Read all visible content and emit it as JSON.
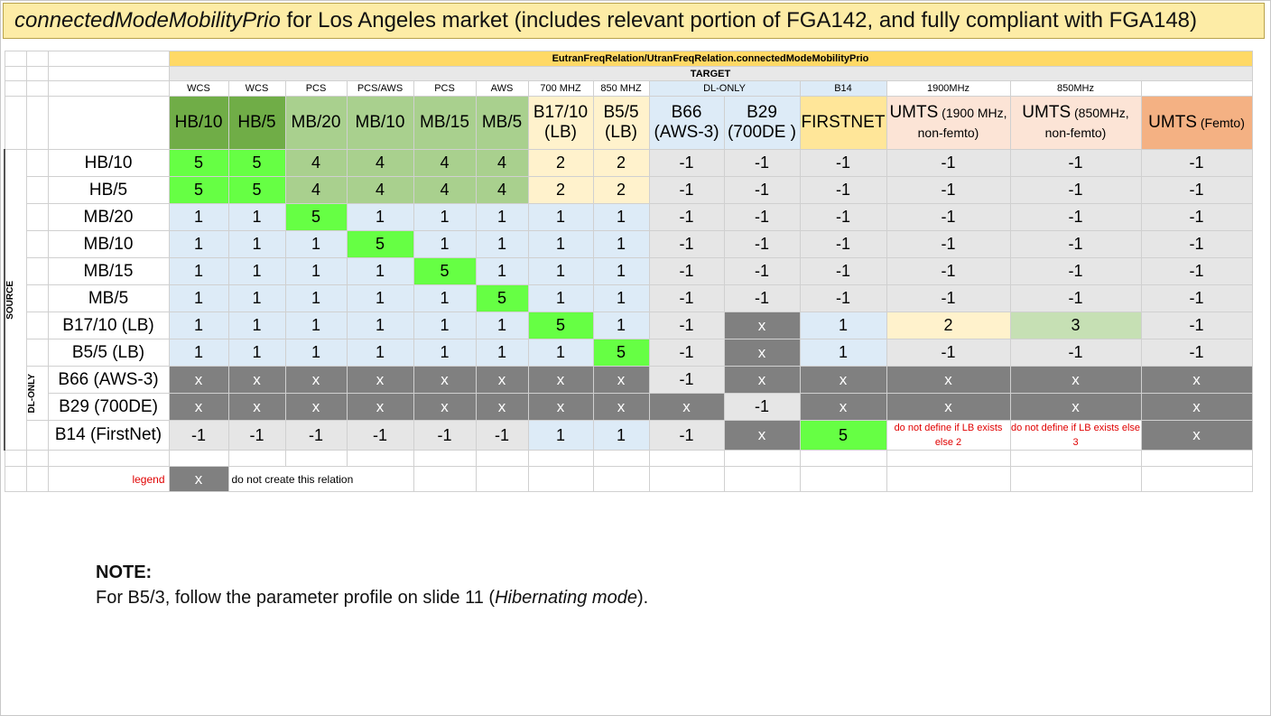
{
  "title": {
    "italic": "connectedModeMobilityPrio",
    "rest": " for Los Angeles market (includes relevant portion of FGA142, and fully compliant with FGA148)"
  },
  "header": {
    "parameter": "EutranFreqRelation/UtranFreqRelation.connectedModeMobilityPrio",
    "target": "TARGET",
    "source": "SOURCE",
    "dl_only": "DL-ONLY"
  },
  "groups": [
    "WCS",
    "WCS",
    "PCS",
    "PCS/AWS",
    "PCS",
    "AWS",
    "700 MHZ",
    "850 MHZ",
    "DL-ONLY",
    "B14",
    "1900MHz",
    "850MHz"
  ],
  "columns": [
    {
      "label": "HB/10"
    },
    {
      "label": "HB/5"
    },
    {
      "label": "MB/20"
    },
    {
      "label": "MB/10"
    },
    {
      "label": "MB/15"
    },
    {
      "label": "MB/5"
    },
    {
      "label": "B17/10 (LB)"
    },
    {
      "label": "B5/5 (LB)"
    },
    {
      "label": "B66 (AWS-3)"
    },
    {
      "label": "B29 (700DE )"
    },
    {
      "label": "FIRSTNET"
    },
    {
      "label": "UMTS",
      "sub": " (1900 MHz, non-femto)"
    },
    {
      "label": "UMTS",
      "sub": " (850MHz, non-femto)"
    },
    {
      "label": "UMTS",
      "sub": " (Femto)"
    }
  ],
  "rows": [
    {
      "label": "HB/10",
      "cells": [
        "5",
        "5",
        "4",
        "4",
        "4",
        "4",
        "2",
        "2",
        "-1",
        "-1",
        "-1",
        "-1",
        "-1",
        "-1"
      ]
    },
    {
      "label": "HB/5",
      "cells": [
        "5",
        "5",
        "4",
        "4",
        "4",
        "4",
        "2",
        "2",
        "-1",
        "-1",
        "-1",
        "-1",
        "-1",
        "-1"
      ]
    },
    {
      "label": "MB/20",
      "cells": [
        "1",
        "1",
        "5",
        "1",
        "1",
        "1",
        "1",
        "1",
        "-1",
        "-1",
        "-1",
        "-1",
        "-1",
        "-1"
      ]
    },
    {
      "label": "MB/10",
      "cells": [
        "1",
        "1",
        "1",
        "5",
        "1",
        "1",
        "1",
        "1",
        "-1",
        "-1",
        "-1",
        "-1",
        "-1",
        "-1"
      ]
    },
    {
      "label": "MB/15",
      "cells": [
        "1",
        "1",
        "1",
        "1",
        "5",
        "1",
        "1",
        "1",
        "-1",
        "-1",
        "-1",
        "-1",
        "-1",
        "-1"
      ]
    },
    {
      "label": "MB/5",
      "cells": [
        "1",
        "1",
        "1",
        "1",
        "1",
        "5",
        "1",
        "1",
        "-1",
        "-1",
        "-1",
        "-1",
        "-1",
        "-1"
      ]
    },
    {
      "label": "B17/10 (LB)",
      "cells": [
        "1",
        "1",
        "1",
        "1",
        "1",
        "1",
        "5",
        "1",
        "-1",
        "x",
        "1",
        "2",
        "3",
        "-1"
      ]
    },
    {
      "label": "B5/5 (LB)",
      "cells": [
        "1",
        "1",
        "1",
        "1",
        "1",
        "1",
        "1",
        "5",
        "-1",
        "x",
        "1",
        "-1",
        "-1",
        "-1"
      ]
    },
    {
      "label": "B66 (AWS-3)",
      "cells": [
        "x",
        "x",
        "x",
        "x",
        "x",
        "x",
        "x",
        "x",
        "-1",
        "x",
        "x",
        "x",
        "x",
        "x"
      ]
    },
    {
      "label": "B29 (700DE)",
      "cells": [
        "x",
        "x",
        "x",
        "x",
        "x",
        "x",
        "x",
        "x",
        "x",
        "-1",
        "x",
        "x",
        "x",
        "x"
      ]
    },
    {
      "label": "B14 (FirstNet)",
      "cells": [
        "-1",
        "-1",
        "-1",
        "-1",
        "-1",
        "-1",
        "1",
        "1",
        "-1",
        "x",
        "5",
        "do not define if LB exists else 2",
        "do not define if LB exists else 3",
        "x"
      ]
    }
  ],
  "legend": {
    "label": "legend",
    "symbol": "x",
    "text": "do not create this relation"
  },
  "note": {
    "heading": "NOTE:",
    "pre": "For B5/3, follow the parameter profile on slide 11 (",
    "italic": "Hibernating mode",
    "post": ")."
  }
}
